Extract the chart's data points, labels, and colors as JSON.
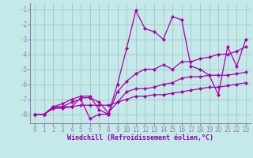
{
  "background_color": "#c5e8e8",
  "grid_color": "#a0c8c8",
  "line_color": "#aa00aa",
  "marker": "D",
  "markersize": 2.2,
  "linewidth": 0.9,
  "xlabel": "Windchill (Refroidissement éolien,°C)",
  "xlabel_fontsize": 6.0,
  "tick_fontsize": 5.5,
  "xlim": [
    -0.5,
    23.5
  ],
  "ylim": [
    -8.6,
    -0.6
  ],
  "yticks": [
    -8,
    -7,
    -6,
    -5,
    -4,
    -3,
    -2,
    -1
  ],
  "xticks": [
    0,
    1,
    2,
    3,
    4,
    5,
    6,
    7,
    8,
    9,
    10,
    11,
    12,
    13,
    14,
    15,
    16,
    17,
    18,
    19,
    20,
    21,
    22,
    23
  ],
  "series": [
    {
      "x": [
        0,
        1,
        2,
        3,
        4,
        5,
        6,
        7,
        8,
        9,
        10,
        11,
        12,
        13,
        14,
        15,
        16,
        17,
        18,
        19,
        20,
        21,
        22,
        23
      ],
      "y": [
        -8.0,
        -8.0,
        -7.6,
        -7.5,
        -7.2,
        -7.0,
        -8.3,
        -8.0,
        -8.0,
        -6.0,
        -3.6,
        -1.1,
        -2.3,
        -2.5,
        -3.0,
        -1.5,
        -1.7,
        -4.8,
        -5.0,
        -5.4,
        -6.7,
        -3.5,
        -4.8,
        -3.0
      ]
    },
    {
      "x": [
        0,
        1,
        2,
        3,
        4,
        5,
        6,
        7,
        8,
        9,
        10,
        11,
        12,
        13,
        14,
        15,
        16,
        17,
        18,
        19,
        20,
        21,
        22,
        23
      ],
      "y": [
        -8.0,
        -8.0,
        -7.5,
        -7.3,
        -7.0,
        -6.8,
        -6.8,
        -7.7,
        -8.0,
        -6.5,
        -5.8,
        -5.3,
        -5.0,
        -5.0,
        -4.7,
        -5.0,
        -4.5,
        -4.5,
        -4.3,
        -4.2,
        -4.0,
        -4.0,
        -3.8,
        -3.5
      ]
    },
    {
      "x": [
        0,
        1,
        2,
        3,
        4,
        5,
        6,
        7,
        8,
        9,
        10,
        11,
        12,
        13,
        14,
        15,
        16,
        17,
        18,
        19,
        20,
        21,
        22,
        23
      ],
      "y": [
        -8.0,
        -8.0,
        -7.5,
        -7.5,
        -7.5,
        -6.9,
        -6.9,
        -7.2,
        -7.9,
        -7.2,
        -6.5,
        -6.3,
        -6.3,
        -6.2,
        -6.0,
        -5.9,
        -5.6,
        -5.5,
        -5.5,
        -5.4,
        -5.4,
        -5.4,
        -5.3,
        -5.2
      ]
    },
    {
      "x": [
        0,
        1,
        2,
        3,
        4,
        5,
        6,
        7,
        8,
        9,
        10,
        11,
        12,
        13,
        14,
        15,
        16,
        17,
        18,
        19,
        20,
        21,
        22,
        23
      ],
      "y": [
        -8.0,
        -8.0,
        -7.6,
        -7.6,
        -7.5,
        -7.4,
        -7.4,
        -7.4,
        -7.4,
        -7.2,
        -7.0,
        -6.8,
        -6.8,
        -6.7,
        -6.7,
        -6.6,
        -6.5,
        -6.4,
        -6.3,
        -6.2,
        -6.2,
        -6.1,
        -6.0,
        -5.9
      ]
    }
  ],
  "spine_color": "#8888aa",
  "tick_color": "#8888aa",
  "label_color": "#8800aa"
}
